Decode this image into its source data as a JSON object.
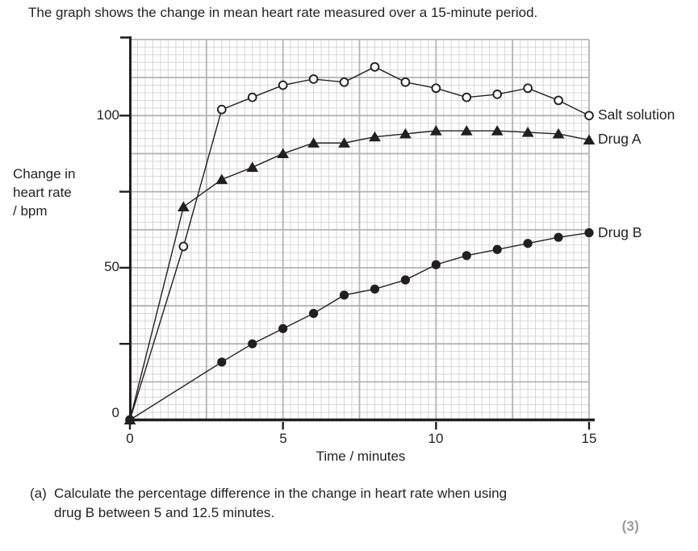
{
  "title": "The graph shows the change in mean heart rate measured over a 15-minute period.",
  "chart_data": {
    "type": "line",
    "title": "The graph shows the change in mean heart rate measured over a 15-minute period.",
    "xlabel": "Time / minutes",
    "ylabel": "Change in heart rate / bpm",
    "xlim": [
      0,
      15
    ],
    "ylim": [
      0,
      125
    ],
    "x_tick_labels": [
      "0",
      "5",
      "10",
      "15"
    ],
    "x_tick_values": [
      0,
      5,
      10,
      15
    ],
    "y_tick_labels": [
      "100",
      "50",
      "0"
    ],
    "y_tick_values": [
      100,
      50,
      0
    ],
    "y_unlabeled_tick_values": [
      25,
      75
    ],
    "grid": {
      "on": true,
      "minor_x_step": 0.25,
      "minor_y_step": 2.5,
      "major_x_step": 2.5,
      "major_y_step": 12.5
    },
    "legend_position": "right-of-last-point",
    "series": [
      {
        "name": "Salt solution",
        "marker": "open-circle",
        "x": [
          0,
          1.75,
          3,
          4,
          5,
          6,
          7,
          8,
          9,
          10,
          11,
          12,
          13,
          14,
          15
        ],
        "y": [
          0,
          57,
          102,
          106,
          110,
          112,
          111,
          116,
          111,
          109,
          106,
          107,
          109,
          105,
          100
        ]
      },
      {
        "name": "Drug A",
        "marker": "filled-triangle",
        "x": [
          0,
          1.75,
          3,
          4,
          5,
          6,
          7,
          8,
          9,
          10,
          11,
          12,
          13,
          14,
          15
        ],
        "y": [
          0,
          70,
          79,
          83,
          87.5,
          91,
          91,
          93,
          94,
          95,
          95,
          95,
          94.5,
          94,
          92
        ]
      },
      {
        "name": "Drug B",
        "marker": "filled-circle",
        "x": [
          0,
          3,
          4,
          5,
          6,
          7,
          8,
          9,
          10,
          11,
          12,
          13,
          14,
          15
        ],
        "y": [
          0,
          19,
          25,
          30,
          35,
          41,
          43,
          46,
          51,
          54,
          56,
          58,
          60,
          61.5
        ]
      }
    ]
  },
  "axis": {
    "y_label_lines": [
      "Change in",
      "heart rate",
      "/ bpm"
    ],
    "x_label": "Time / minutes",
    "y_ticks": [
      "100",
      "50",
      "0"
    ],
    "x_ticks": [
      "0",
      "5",
      "10",
      "15"
    ]
  },
  "legend": {
    "salt_solution": "Salt solution",
    "drug_a": "Drug A",
    "drug_b": "Drug B"
  },
  "question": {
    "part_label": "(a)",
    "line1": "Calculate the percentage difference in the change in heart rate when using",
    "line2": "drug B between 5 and 12.5 minutes.",
    "marks": "(3)"
  },
  "colors": {
    "text": "#231f20",
    "axis": "#231f20",
    "series_line": "#231f20",
    "grid_minor": "#d6d6d8",
    "grid_major": "#b3b3b6",
    "marks_gray": "#9a9ca0",
    "background": "#ffffff"
  }
}
